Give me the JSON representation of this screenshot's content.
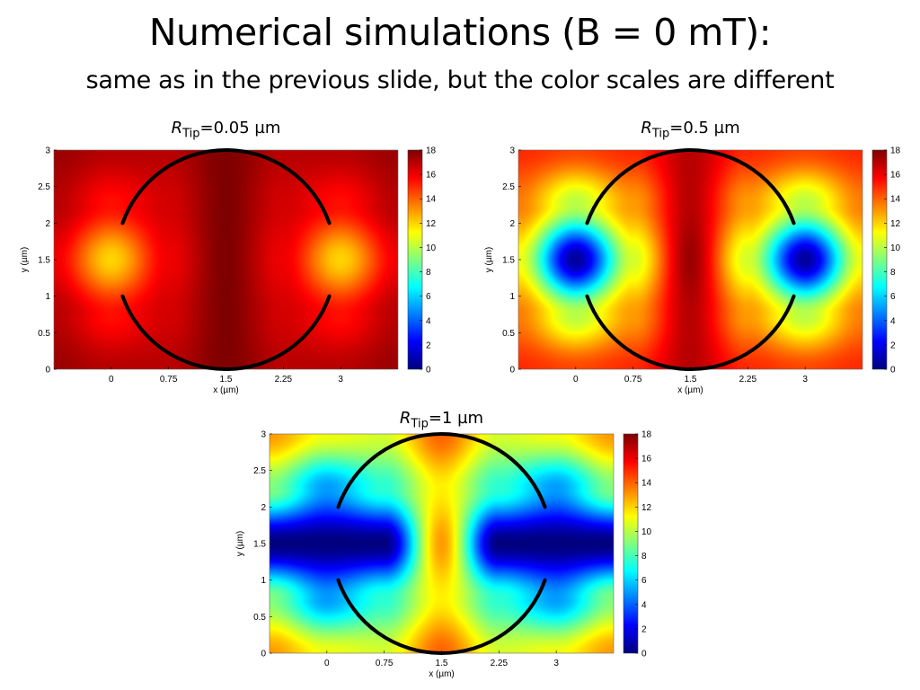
{
  "slide": {
    "title": "Numerical simulations (B = 0 mT):",
    "subtitle": "same as in the previous slide, but the color scales are different"
  },
  "chart_data": [
    {
      "type": "heatmap",
      "title_var": "R",
      "title_sub": "Tip",
      "title_rest": "=0.05 µm",
      "xlabel": "x (µm)",
      "ylabel": "y (µm)",
      "xlim": [
        -0.75,
        3.75
      ],
      "ylim": [
        0,
        3
      ],
      "xticks": [
        "0",
        "0.75",
        "1.5",
        "2.25",
        "3"
      ],
      "xtick_values": [
        0,
        0.75,
        1.5,
        2.25,
        3
      ],
      "yticks": [
        "0",
        "0.5",
        "1",
        "1.5",
        "2",
        "2.5",
        "3"
      ],
      "ytick_values": [
        0,
        0.5,
        1,
        1.5,
        2,
        2.5,
        3
      ],
      "colormap": "jet",
      "clim": [
        0,
        18
      ],
      "colorbar_ticks": [
        "0",
        "2",
        "4",
        "6",
        "8",
        "10",
        "12",
        "14",
        "16",
        "18"
      ],
      "grid_x": [
        -0.75,
        0,
        0.75,
        1.5,
        2.25,
        3,
        3.75
      ],
      "grid_y": [
        0,
        0.75,
        1.5,
        2.25,
        3
      ],
      "z": [
        [
          17.5,
          17,
          17,
          18,
          17,
          17,
          17.5
        ],
        [
          17,
          15.5,
          16.5,
          18,
          16.5,
          15.5,
          17
        ],
        [
          16,
          12,
          16,
          18,
          16,
          12,
          16
        ],
        [
          17,
          15.5,
          16.5,
          18,
          16.5,
          15.5,
          17
        ],
        [
          17.5,
          17,
          17,
          18,
          17,
          17,
          17.5
        ]
      ],
      "overlay": "black circle centered at (1.5, 1.5), open between y=1 and y=2 on both sides"
    },
    {
      "type": "heatmap",
      "title_var": "R",
      "title_sub": "Tip",
      "title_rest": "=0.5 µm",
      "xlabel": "x (µm)",
      "ylabel": "y (µm)",
      "xlim": [
        -0.75,
        3.75
      ],
      "ylim": [
        0,
        3
      ],
      "xticks": [
        "0",
        "0.75",
        "1.5",
        "2.25",
        "3"
      ],
      "xtick_values": [
        0,
        0.75,
        1.5,
        2.25,
        3
      ],
      "yticks": [
        "0",
        "0.5",
        "1",
        "1.5",
        "2",
        "2.5",
        "3"
      ],
      "ytick_values": [
        0,
        0.5,
        1,
        1.5,
        2,
        2.5,
        3
      ],
      "colormap": "jet",
      "clim": [
        0,
        18
      ],
      "colorbar_ticks": [
        "0",
        "2",
        "4",
        "6",
        "8",
        "10",
        "12",
        "14",
        "16",
        "18"
      ],
      "grid_x": [
        -0.75,
        0,
        0.75,
        1.5,
        2.25,
        3,
        3.75
      ],
      "grid_y": [
        0,
        0.75,
        1.5,
        2.25,
        3
      ],
      "z": [
        [
          15,
          14.5,
          15,
          17,
          15,
          14.5,
          15
        ],
        [
          13.5,
          10,
          13,
          17,
          13,
          10,
          13.5
        ],
        [
          11,
          0.5,
          10.5,
          17.5,
          10.5,
          0.5,
          11
        ],
        [
          13.5,
          10,
          13,
          17,
          13,
          10,
          13.5
        ],
        [
          15,
          14.5,
          15,
          17,
          15,
          14.5,
          15
        ]
      ],
      "overlay": "black circle centered at (1.5, 1.5), open between y=1 and y=2 on both sides"
    },
    {
      "type": "heatmap",
      "title_var": "R",
      "title_sub": "Tip",
      "title_rest": "=1 µm",
      "xlabel": "x (µm)",
      "ylabel": "y (µm)",
      "xlim": [
        -0.75,
        3.75
      ],
      "ylim": [
        0,
        3
      ],
      "xticks": [
        "0",
        "0.75",
        "1.5",
        "2.25",
        "3"
      ],
      "xtick_values": [
        0,
        0.75,
        1.5,
        2.25,
        3
      ],
      "yticks": [
        "0",
        "0.5",
        "1",
        "1.5",
        "2",
        "2.5",
        "3"
      ],
      "ytick_values": [
        0,
        0.5,
        1,
        1.5,
        2,
        2.5,
        3
      ],
      "colormap": "jet",
      "clim": [
        0,
        18
      ],
      "colorbar_ticks": [
        "0",
        "2",
        "4",
        "6",
        "8",
        "10",
        "12",
        "14",
        "16",
        "18"
      ],
      "grid_x": [
        -0.75,
        0,
        0.75,
        1.5,
        2.25,
        3,
        3.75
      ],
      "grid_y": [
        0,
        0.75,
        1.5,
        2.25,
        3
      ],
      "z": [
        [
          13,
          11,
          10.5,
          14,
          10.5,
          11,
          13
        ],
        [
          9,
          5,
          7.5,
          11.5,
          7.5,
          5,
          9
        ],
        [
          0,
          0,
          0,
          13,
          0,
          0,
          0
        ],
        [
          9,
          5,
          7.5,
          11.5,
          7.5,
          5,
          9
        ],
        [
          13,
          11,
          10.5,
          14,
          10.5,
          11,
          13
        ]
      ],
      "overlay": "black circle centered at (1.5, 1.5), open between y=1 and y=2 on both sides"
    }
  ]
}
